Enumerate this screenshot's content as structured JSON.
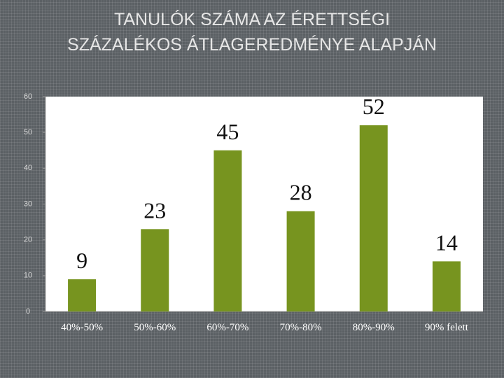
{
  "chart_data": {
    "type": "bar",
    "title": [
      "TANULÓK SZÁMA AZ ÉRETTSÉGI",
      "SZÁZALÉKOS ÁTLAGEREDMÉNYE ALAPJÁN"
    ],
    "categories": [
      "40%-50%",
      "50%-60%",
      "60%-70%",
      "70%-80%",
      "80%-90%",
      "90% felett"
    ],
    "values": [
      9,
      23,
      45,
      28,
      52,
      14
    ],
    "color": "#77941f",
    "ylim": [
      0,
      60
    ],
    "yticks": [
      0,
      10,
      20,
      30,
      40,
      50,
      60
    ],
    "grid": false
  }
}
